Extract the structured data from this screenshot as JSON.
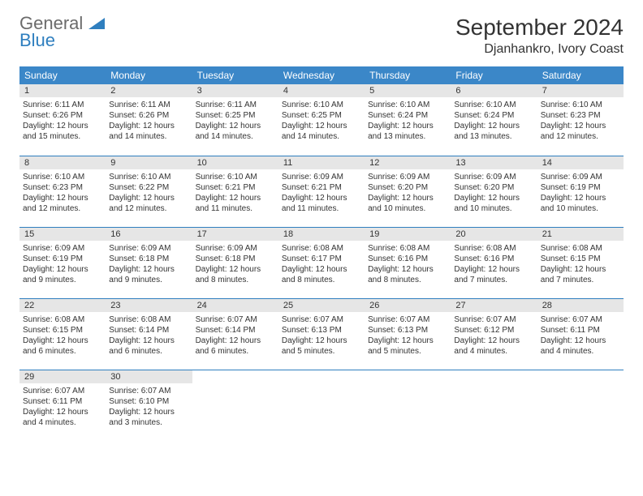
{
  "logo": {
    "general": "General",
    "blue": "Blue"
  },
  "title": "September 2024",
  "location": "Djanhankro, Ivory Coast",
  "colors": {
    "header_bg": "#3b87c8",
    "header_text": "#ffffff",
    "daynum_bg": "#e6e6e6",
    "border": "#2f7fbf",
    "logo_gray": "#6b6b6b",
    "logo_blue": "#2f7fbf"
  },
  "weekdays": [
    "Sunday",
    "Monday",
    "Tuesday",
    "Wednesday",
    "Thursday",
    "Friday",
    "Saturday"
  ],
  "days": [
    {
      "n": 1,
      "sunrise": "6:11 AM",
      "sunset": "6:26 PM",
      "daylight": "12 hours and 15 minutes."
    },
    {
      "n": 2,
      "sunrise": "6:11 AM",
      "sunset": "6:26 PM",
      "daylight": "12 hours and 14 minutes."
    },
    {
      "n": 3,
      "sunrise": "6:11 AM",
      "sunset": "6:25 PM",
      "daylight": "12 hours and 14 minutes."
    },
    {
      "n": 4,
      "sunrise": "6:10 AM",
      "sunset": "6:25 PM",
      "daylight": "12 hours and 14 minutes."
    },
    {
      "n": 5,
      "sunrise": "6:10 AM",
      "sunset": "6:24 PM",
      "daylight": "12 hours and 13 minutes."
    },
    {
      "n": 6,
      "sunrise": "6:10 AM",
      "sunset": "6:24 PM",
      "daylight": "12 hours and 13 minutes."
    },
    {
      "n": 7,
      "sunrise": "6:10 AM",
      "sunset": "6:23 PM",
      "daylight": "12 hours and 12 minutes."
    },
    {
      "n": 8,
      "sunrise": "6:10 AM",
      "sunset": "6:23 PM",
      "daylight": "12 hours and 12 minutes."
    },
    {
      "n": 9,
      "sunrise": "6:10 AM",
      "sunset": "6:22 PM",
      "daylight": "12 hours and 12 minutes."
    },
    {
      "n": 10,
      "sunrise": "6:10 AM",
      "sunset": "6:21 PM",
      "daylight": "12 hours and 11 minutes."
    },
    {
      "n": 11,
      "sunrise": "6:09 AM",
      "sunset": "6:21 PM",
      "daylight": "12 hours and 11 minutes."
    },
    {
      "n": 12,
      "sunrise": "6:09 AM",
      "sunset": "6:20 PM",
      "daylight": "12 hours and 10 minutes."
    },
    {
      "n": 13,
      "sunrise": "6:09 AM",
      "sunset": "6:20 PM",
      "daylight": "12 hours and 10 minutes."
    },
    {
      "n": 14,
      "sunrise": "6:09 AM",
      "sunset": "6:19 PM",
      "daylight": "12 hours and 10 minutes."
    },
    {
      "n": 15,
      "sunrise": "6:09 AM",
      "sunset": "6:19 PM",
      "daylight": "12 hours and 9 minutes."
    },
    {
      "n": 16,
      "sunrise": "6:09 AM",
      "sunset": "6:18 PM",
      "daylight": "12 hours and 9 minutes."
    },
    {
      "n": 17,
      "sunrise": "6:09 AM",
      "sunset": "6:18 PM",
      "daylight": "12 hours and 8 minutes."
    },
    {
      "n": 18,
      "sunrise": "6:08 AM",
      "sunset": "6:17 PM",
      "daylight": "12 hours and 8 minutes."
    },
    {
      "n": 19,
      "sunrise": "6:08 AM",
      "sunset": "6:16 PM",
      "daylight": "12 hours and 8 minutes."
    },
    {
      "n": 20,
      "sunrise": "6:08 AM",
      "sunset": "6:16 PM",
      "daylight": "12 hours and 7 minutes."
    },
    {
      "n": 21,
      "sunrise": "6:08 AM",
      "sunset": "6:15 PM",
      "daylight": "12 hours and 7 minutes."
    },
    {
      "n": 22,
      "sunrise": "6:08 AM",
      "sunset": "6:15 PM",
      "daylight": "12 hours and 6 minutes."
    },
    {
      "n": 23,
      "sunrise": "6:08 AM",
      "sunset": "6:14 PM",
      "daylight": "12 hours and 6 minutes."
    },
    {
      "n": 24,
      "sunrise": "6:07 AM",
      "sunset": "6:14 PM",
      "daylight": "12 hours and 6 minutes."
    },
    {
      "n": 25,
      "sunrise": "6:07 AM",
      "sunset": "6:13 PM",
      "daylight": "12 hours and 5 minutes."
    },
    {
      "n": 26,
      "sunrise": "6:07 AM",
      "sunset": "6:13 PM",
      "daylight": "12 hours and 5 minutes."
    },
    {
      "n": 27,
      "sunrise": "6:07 AM",
      "sunset": "6:12 PM",
      "daylight": "12 hours and 4 minutes."
    },
    {
      "n": 28,
      "sunrise": "6:07 AM",
      "sunset": "6:11 PM",
      "daylight": "12 hours and 4 minutes."
    },
    {
      "n": 29,
      "sunrise": "6:07 AM",
      "sunset": "6:11 PM",
      "daylight": "12 hours and 4 minutes."
    },
    {
      "n": 30,
      "sunrise": "6:07 AM",
      "sunset": "6:10 PM",
      "daylight": "12 hours and 3 minutes."
    }
  ],
  "labels": {
    "sunrise": "Sunrise: ",
    "sunset": "Sunset: ",
    "daylight": "Daylight: "
  },
  "start_offset": 0
}
